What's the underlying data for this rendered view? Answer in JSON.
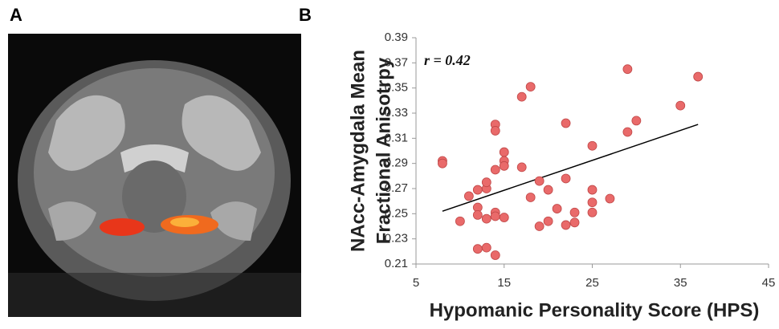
{
  "panel_labels": [
    "A",
    "B"
  ],
  "chart_data": {
    "type": "scatter",
    "annotation": "r = 0.42",
    "xlabel": "Hypomanic Personality Score (HPS)",
    "ylabel": [
      "NAcc-Amygdala Mean",
      "Fractional Anisotrpy"
    ],
    "xlim": [
      5,
      45
    ],
    "xticks": [
      5,
      15,
      25,
      35,
      45
    ],
    "ylim": [
      0.21,
      0.39
    ],
    "yticks": [
      0.21,
      0.23,
      0.25,
      0.27,
      0.29,
      0.31,
      0.33,
      0.35,
      0.37,
      0.39
    ],
    "color": "#e96a6a",
    "x": [
      8,
      8,
      10,
      11,
      12,
      12,
      12,
      12,
      13,
      13,
      13,
      13,
      14,
      14,
      14,
      14,
      14,
      14,
      15,
      15,
      15,
      15,
      17,
      17,
      18,
      18,
      19,
      19,
      20,
      20,
      21,
      22,
      22,
      22,
      23,
      23,
      25,
      25,
      25,
      25,
      27,
      29,
      29,
      30,
      35,
      37
    ],
    "values": [
      0.292,
      0.29,
      0.244,
      0.264,
      0.269,
      0.255,
      0.249,
      0.222,
      0.27,
      0.275,
      0.246,
      0.223,
      0.321,
      0.316,
      0.285,
      0.251,
      0.248,
      0.217,
      0.299,
      0.292,
      0.288,
      0.247,
      0.343,
      0.287,
      0.351,
      0.263,
      0.276,
      0.24,
      0.269,
      0.244,
      0.254,
      0.322,
      0.278,
      0.241,
      0.251,
      0.243,
      0.304,
      0.269,
      0.259,
      0.251,
      0.262,
      0.365,
      0.315,
      0.324,
      0.336,
      0.359
    ],
    "trendline": {
      "x": [
        8,
        37
      ],
      "y": [
        0.252,
        0.321
      ],
      "color": "#000000"
    }
  }
}
